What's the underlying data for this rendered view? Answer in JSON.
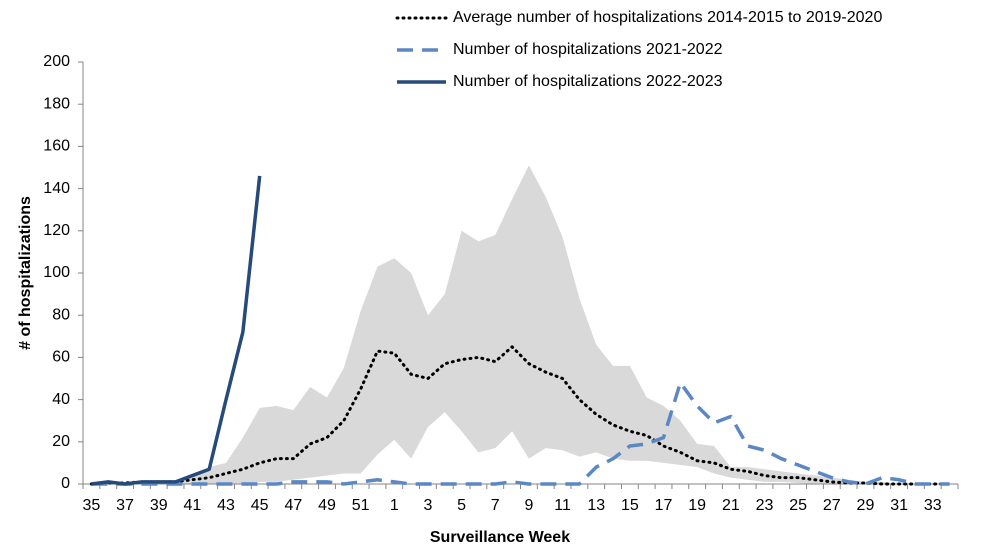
{
  "chart_data": {
    "type": "line",
    "x_label": "Surveillance Week",
    "y_label": "# of hospitalizations",
    "categories": [
      "35",
      null,
      "37",
      null,
      "39",
      null,
      "41",
      null,
      "43",
      null,
      "45",
      null,
      "47",
      null,
      "49",
      null,
      "51",
      null,
      "1",
      null,
      "3",
      null,
      "5",
      null,
      "7",
      null,
      "9",
      null,
      "11",
      null,
      "13",
      null,
      "15",
      null,
      "17",
      null,
      "19",
      null,
      "21",
      null,
      "23",
      null,
      "25",
      null,
      "27",
      null,
      "29",
      null,
      "31",
      null,
      "33",
      null
    ],
    "ylim": [
      0,
      200
    ],
    "yticks": [
      0,
      20,
      40,
      60,
      80,
      100,
      120,
      140,
      160,
      180,
      200
    ],
    "band": {
      "color": "#d9d9d9",
      "upper": [
        0,
        0,
        0,
        1,
        1,
        1,
        3,
        8,
        10,
        22,
        36,
        37,
        35,
        46,
        41,
        55,
        82,
        103,
        107,
        100,
        80,
        90,
        120,
        115,
        118,
        135,
        151,
        136,
        117,
        88,
        66,
        56,
        56,
        41,
        37,
        30,
        19,
        18,
        8,
        8,
        7,
        6,
        5,
        4,
        3,
        2,
        1,
        1,
        0,
        0,
        0,
        0
      ],
      "lower": [
        0,
        0,
        0,
        0,
        0,
        0,
        0,
        0,
        0,
        0,
        1,
        1,
        2,
        3,
        4,
        5,
        5,
        14,
        21,
        12,
        27,
        34,
        25,
        15,
        17,
        25,
        12,
        17,
        16,
        13,
        15,
        12,
        11,
        11,
        10,
        9,
        8,
        5,
        3,
        2,
        1,
        1,
        0.5,
        0,
        0,
        0,
        0,
        0,
        0,
        0,
        0,
        0
      ]
    },
    "series": [
      {
        "name": "Average number of hospitalizations 2014-2015 to 2019-2020",
        "color": "#000000",
        "dash": "dotted",
        "values": [
          0,
          0.5,
          0.5,
          1,
          1,
          1,
          2,
          3,
          5,
          7,
          10,
          12,
          12,
          19,
          22,
          30,
          45,
          63,
          62,
          52,
          50,
          57,
          59,
          60,
          58,
          65,
          57,
          53,
          50,
          40,
          33,
          28,
          25,
          23,
          18,
          15,
          11,
          10,
          7,
          6,
          4,
          3,
          3,
          2,
          1,
          0.5,
          0.5,
          0,
          0,
          0,
          0,
          0
        ]
      },
      {
        "name": "Number of hospitalizations 2021-2022",
        "color": "#5b87c5",
        "dash": "dashed",
        "values": [
          0,
          0,
          0,
          0,
          0,
          0,
          0,
          0,
          0,
          0,
          0,
          0,
          1,
          1,
          1,
          0,
          1,
          2,
          1,
          0,
          0,
          0,
          0,
          0,
          0,
          1,
          0,
          0,
          0,
          0,
          8,
          12,
          18,
          19,
          22,
          48,
          37,
          29,
          32,
          18,
          16,
          12,
          9,
          6,
          3,
          1,
          0,
          3,
          2,
          0,
          0,
          0
        ]
      },
      {
        "name": "Number of hospitalizations 2022-2023",
        "color": "#264a7a",
        "dash": "solid",
        "values": [
          0,
          1,
          0,
          1,
          1,
          1,
          4,
          7,
          40,
          72,
          146,
          null,
          null,
          null,
          null,
          null,
          null,
          null,
          null,
          null,
          null,
          null,
          null,
          null,
          null,
          null,
          null,
          null,
          null,
          null,
          null,
          null,
          null,
          null,
          null,
          null,
          null,
          null,
          null,
          null,
          null,
          null,
          null,
          null,
          null,
          null,
          null,
          null,
          null,
          null,
          null,
          null
        ]
      }
    ]
  }
}
